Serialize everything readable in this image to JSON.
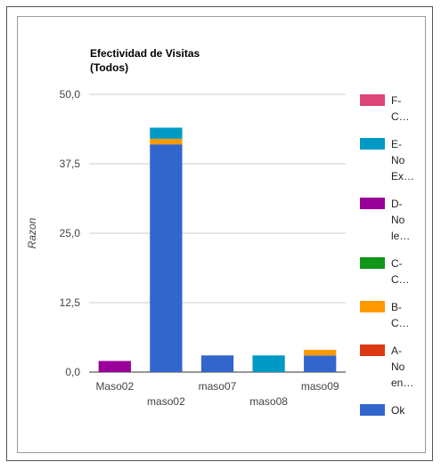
{
  "chart_data": {
    "type": "bar",
    "stacked": true,
    "title_line1": "Efectividad de Visitas",
    "title_line2": "(Todos)",
    "ylabel": "Razon",
    "ylim": [
      0,
      50
    ],
    "yticks": [
      "0,0",
      "12,5",
      "25,0",
      "37,5",
      "50,0"
    ],
    "ytick_values": [
      0,
      12.5,
      25,
      37.5,
      50
    ],
    "grid": true,
    "legend_position": "right",
    "categories": [
      "Maso02",
      "maso02",
      "maso07",
      "maso08",
      "maso09"
    ],
    "series": [
      {
        "name": "Ok",
        "legend_lines": [
          "Ok"
        ],
        "color": "#3366cc",
        "values": [
          0,
          41,
          3,
          0,
          3
        ]
      },
      {
        "name": "A-No en…",
        "legend_lines": [
          "A-",
          "No",
          "en…"
        ],
        "color": "#dc3912",
        "values": [
          0,
          0,
          0,
          0,
          0
        ]
      },
      {
        "name": "B-C…",
        "legend_lines": [
          "B-",
          "C…"
        ],
        "color": "#ff9900",
        "values": [
          0,
          1,
          0,
          0,
          1
        ]
      },
      {
        "name": "C-C…",
        "legend_lines": [
          "C-",
          "C…"
        ],
        "color": "#109618",
        "values": [
          0,
          0,
          0,
          0,
          0
        ]
      },
      {
        "name": "D-No le…",
        "legend_lines": [
          "D-",
          "No",
          "le…"
        ],
        "color": "#990099",
        "values": [
          2,
          0,
          0,
          0,
          0
        ]
      },
      {
        "name": "E-No Ex…",
        "legend_lines": [
          "E-",
          "No",
          "Ex…"
        ],
        "color": "#0099c6",
        "values": [
          0,
          2,
          0,
          3,
          0
        ]
      },
      {
        "name": "F-C…",
        "legend_lines": [
          "F-",
          "C…"
        ],
        "color": "#dd4477",
        "values": [
          0,
          0,
          0,
          0,
          0
        ]
      }
    ]
  }
}
